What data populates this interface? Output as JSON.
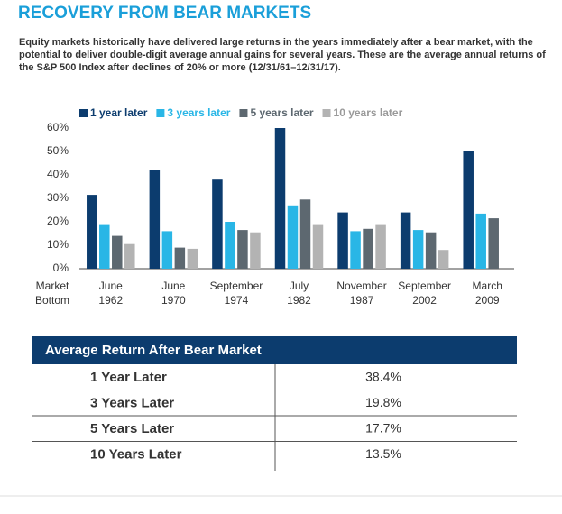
{
  "header": {
    "title": "RECOVERY FROM BEAR MARKETS",
    "subtitle": "Equity markets historically have delivered large returns in the years immediately after a bear market, with the potential to deliver double-digit average annual gains for several years. These are the average annual returns of the S&P 500 Index after declines of 20% or more (12/31/61–12/31/17)."
  },
  "chart_data": {
    "type": "bar",
    "x_label": [
      "Market",
      "Bottom"
    ],
    "categories": [
      [
        "June",
        "1962"
      ],
      [
        "June",
        "1970"
      ],
      [
        "September",
        "1974"
      ],
      [
        "July",
        "1982"
      ],
      [
        "November",
        "1987"
      ],
      [
        "September",
        "2002"
      ],
      [
        "March",
        "2009"
      ]
    ],
    "series": [
      {
        "name": "1 year later",
        "color": "#0c3c6e",
        "values": [
          31.5,
          42,
          38,
          60,
          24,
          24,
          50
        ]
      },
      {
        "name": "3 years later",
        "color": "#29b6e6",
        "values": [
          19,
          16,
          20,
          27,
          16,
          16.5,
          23.5
        ]
      },
      {
        "name": "5 years later",
        "color": "#5d6870",
        "values": [
          14,
          9,
          16.5,
          29.5,
          17,
          15.5,
          21.5
        ]
      },
      {
        "name": "10 years later",
        "color": "#b3b3b3",
        "values": [
          10.5,
          8.5,
          15.5,
          19,
          19,
          8,
          null
        ]
      }
    ],
    "ylim": [
      0,
      60
    ],
    "yticks": [
      {
        "value": 0,
        "label": "0%"
      },
      {
        "value": 10,
        "label": "10%"
      },
      {
        "value": 20,
        "label": "20%"
      },
      {
        "value": 30,
        "label": "30%"
      },
      {
        "value": 40,
        "label": "40%"
      },
      {
        "value": 50,
        "label": "50%"
      },
      {
        "value": 60,
        "label": "60%"
      }
    ],
    "grid": false,
    "legend": "top"
  },
  "table": {
    "header": "Average Return After Bear Market",
    "rows": [
      [
        "1 Year Later",
        "38.4%"
      ],
      [
        "3 Years Later",
        "19.8%"
      ],
      [
        "5 Years Later",
        "17.7%"
      ],
      [
        "10 Years Later",
        "13.5%"
      ]
    ]
  }
}
